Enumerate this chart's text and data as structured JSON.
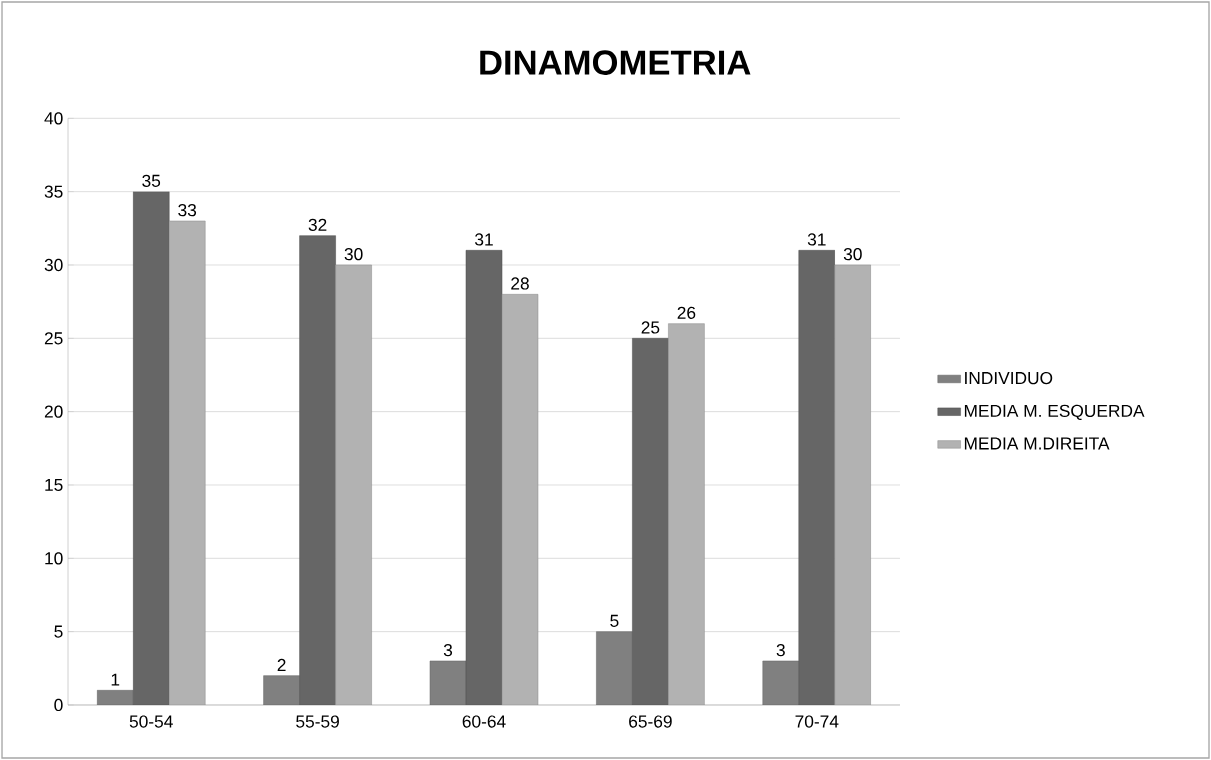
{
  "chart_data": {
    "type": "bar",
    "title": "DINAMOMETRIA",
    "categories": [
      "50-54",
      "55-59",
      "60-64",
      "65-69",
      "70-74"
    ],
    "series": [
      {
        "name": "INDIVIDUO",
        "color": "#808080",
        "values": [
          1,
          2,
          3,
          5,
          3
        ]
      },
      {
        "name": "MEDIA M. ESQUERDA",
        "color": "#666666",
        "values": [
          35,
          32,
          31,
          25,
          31
        ]
      },
      {
        "name": "MEDIA M.DIREITA",
        "color": "#b2b2b2",
        "values": [
          33,
          30,
          28,
          26,
          30
        ]
      }
    ],
    "ylim": [
      0,
      40
    ],
    "yticks": [
      0,
      5,
      10,
      15,
      20,
      25,
      30,
      35,
      40
    ],
    "grid": "y",
    "legend": "right",
    "data_labels": true
  }
}
